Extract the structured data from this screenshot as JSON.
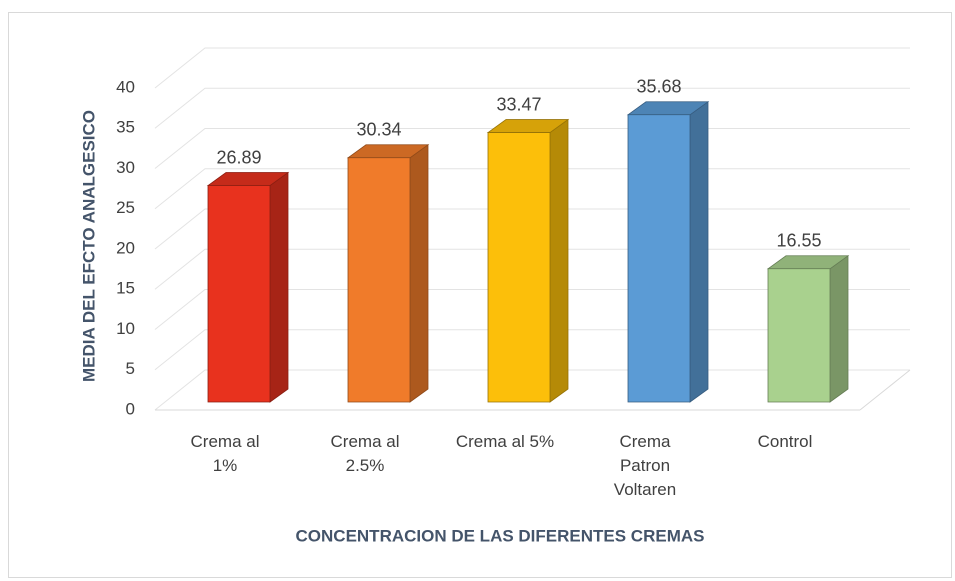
{
  "chart_data": {
    "type": "bar3d",
    "categories": [
      "Crema al 1%",
      "Crema al 2.5%",
      "Crema al 5%",
      "Crema Patron Voltaren",
      "Control"
    ],
    "values": [
      26.89,
      30.34,
      33.47,
      35.68,
      16.55
    ],
    "colors": [
      "#e8321e",
      "#f07b2a",
      "#fcbf0a",
      "#5b9bd5",
      "#a9d18e"
    ],
    "x_label": "CONCENTRACION DE LAS DIFERENTES CREMAS",
    "y_label": "MEDIA DEL EFCTO ANALGESICO",
    "ylim": [
      0,
      40
    ],
    "yticks": [
      0,
      5,
      10,
      15,
      20,
      25,
      30,
      35,
      40
    ],
    "grid": true
  }
}
